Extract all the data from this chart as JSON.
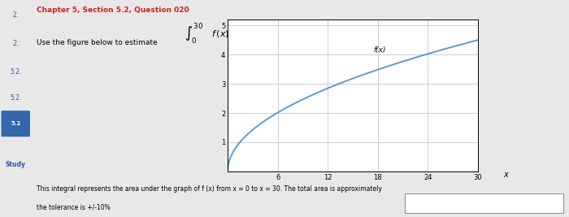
{
  "title": "Chapter 5, Section 5.2, Question 020",
  "integral_text": "Use the figure below to estimate",
  "curve_label": "f(x)",
  "x_label": "x",
  "xlim": [
    0,
    30
  ],
  "ylim": [
    0,
    5.2
  ],
  "xticks": [
    6,
    12,
    18,
    24,
    30
  ],
  "yticks": [
    1,
    2,
    3,
    4,
    5
  ],
  "curve_color": "#5b9bd5",
  "grid_color": "#bbbbbb",
  "page_bg": "#e8e8e8",
  "white_bg": "#ffffff",
  "title_color": "#cc2222",
  "sidebar_items": [
    "2.",
    ".2.",
    "5.2.",
    "5.2.",
    "5.2"
  ],
  "sidebar_study": "Study",
  "sidebar_bg": "#d0d8e0",
  "bottom_text1": "This integral represents the area under the graph of f (x) from x = 0 to x = 30. The total area is approximately",
  "bottom_text2": "the tolerance is +/-10%"
}
